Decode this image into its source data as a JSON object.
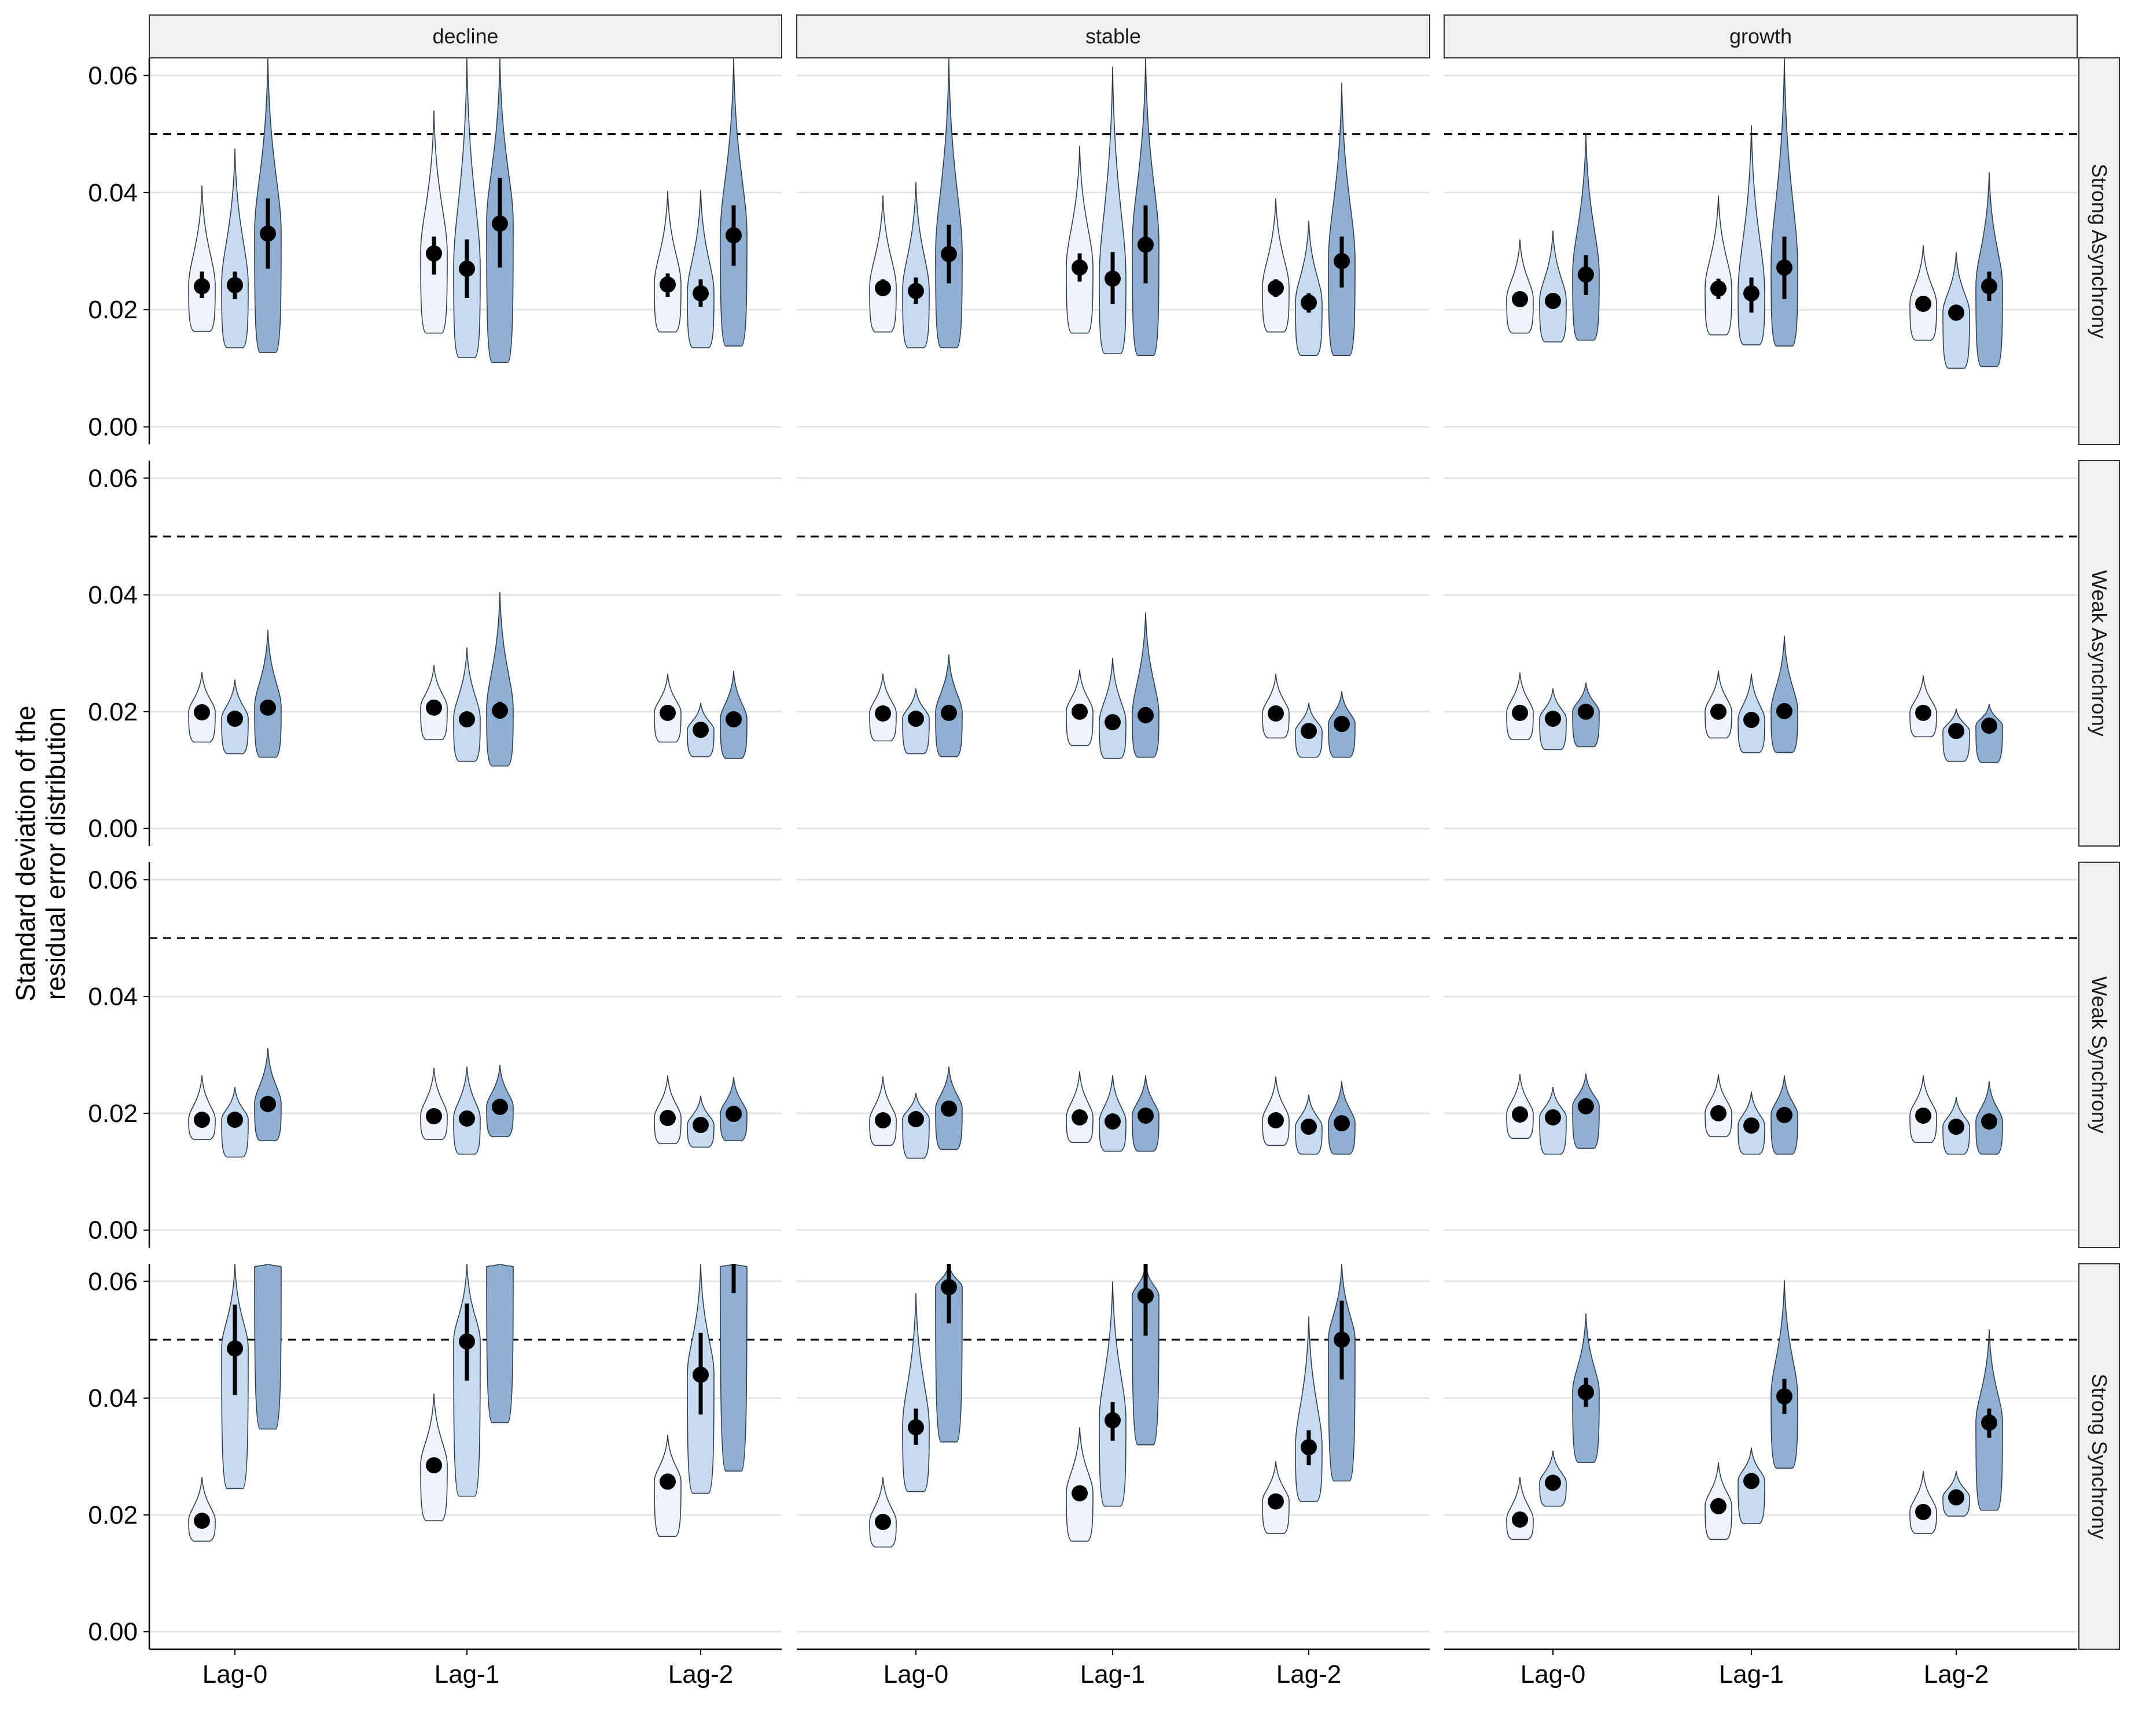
{
  "chart_data": {
    "type": "violin",
    "ylabel": "Standard deviation of the\nresidual error distribution",
    "xlabel": "",
    "title": "",
    "ylim": [
      -0.003,
      0.063
    ],
    "y_ticks": [
      0.0,
      0.02,
      0.04,
      0.06
    ],
    "y_tick_labels": [
      "0.00",
      "0.02",
      "0.04",
      "0.06"
    ],
    "reference_line": 0.05,
    "column_facets": [
      "decline",
      "stable",
      "growth"
    ],
    "row_facets": [
      "Strong Asynchrony",
      "Weak Asynchrony",
      "Weak Synchrony",
      "Strong Synchrony"
    ],
    "categories": [
      "Lag-0",
      "Lag-1",
      "Lag-2"
    ],
    "fill_colors": [
      "#eff3fa",
      "#c6dbef",
      "#8fb0d3"
    ],
    "outline_color": "#2d3e50",
    "grid": true,
    "legend": "none",
    "panels": [
      [
        [
          [
            [
              0.024,
              0.022,
              0.0265,
              0.0163,
              0.0412
            ],
            [
              0.0242,
              0.0218,
              0.0265,
              0.0135,
              0.0475
            ],
            [
              0.033,
              0.027,
              0.039,
              0.0127,
              0.063
            ]
          ],
          [
            [
              0.0296,
              0.026,
              0.0325,
              0.016,
              0.054
            ],
            [
              0.027,
              0.022,
              0.032,
              0.0118,
              0.063
            ],
            [
              0.0347,
              0.0272,
              0.0425,
              0.011,
              0.063
            ]
          ],
          [
            [
              0.0243,
              0.0222,
              0.0262,
              0.0162,
              0.0403
            ],
            [
              0.0228,
              0.0205,
              0.0252,
              0.0135,
              0.0405
            ],
            [
              0.0327,
              0.0275,
              0.0378,
              0.0138,
              0.063
            ]
          ]
        ],
        [
          [
            [
              0.0237,
              0.0223,
              0.0252,
              0.0162,
              0.0395
            ],
            [
              0.0232,
              0.021,
              0.0255,
              0.0135,
              0.0418
            ],
            [
              0.0295,
              0.0245,
              0.0345,
              0.0135,
              0.063
            ]
          ],
          [
            [
              0.0272,
              0.0248,
              0.0296,
              0.016,
              0.048
            ],
            [
              0.0253,
              0.021,
              0.0298,
              0.0125,
              0.0615
            ],
            [
              0.0311,
              0.0245,
              0.0378,
              0.0122,
              0.063
            ]
          ],
          [
            [
              0.0237,
              0.0222,
              0.0252,
              0.0162,
              0.039
            ],
            [
              0.0212,
              0.0195,
              0.0228,
              0.0122,
              0.0352
            ],
            [
              0.0283,
              0.0238,
              0.0325,
              0.0122,
              0.0588
            ]
          ]
        ],
        [
          [
            [
              0.0218,
              0.0207,
              0.0229,
              0.016,
              0.032
            ],
            [
              0.0215,
              0.0203,
              0.0228,
              0.0145,
              0.0335
            ],
            [
              0.026,
              0.0225,
              0.0293,
              0.0148,
              0.0502
            ]
          ],
          [
            [
              0.0236,
              0.0218,
              0.0253,
              0.0157,
              0.0395
            ],
            [
              0.0228,
              0.0195,
              0.0255,
              0.014,
              0.0515
            ],
            [
              0.0272,
              0.0218,
              0.0325,
              0.0138,
              0.063
            ]
          ],
          [
            [
              0.021,
              0.0203,
              0.0218,
              0.0148,
              0.031
            ],
            [
              0.0195,
              0.0185,
              0.0205,
              0.01,
              0.0298
            ],
            [
              0.024,
              0.0215,
              0.0265,
              0.0103,
              0.0435
            ]
          ]
        ]
      ],
      [
        [
          [
            [
              0.0199,
              0.0193,
              0.0205,
              0.0148,
              0.0268
            ],
            [
              0.0188,
              0.0183,
              0.0195,
              0.0128,
              0.0255
            ],
            [
              0.0207,
              0.0195,
              0.0218,
              0.0122,
              0.034
            ]
          ],
          [
            [
              0.0207,
              0.02,
              0.0213,
              0.0152,
              0.028
            ],
            [
              0.0187,
              0.0178,
              0.0195,
              0.0115,
              0.031
            ],
            [
              0.0202,
              0.0188,
              0.0217,
              0.0107,
              0.0405
            ]
          ],
          [
            [
              0.0198,
              0.0193,
              0.0203,
              0.0148,
              0.0265
            ],
            [
              0.0169,
              0.0163,
              0.0175,
              0.0123,
              0.0215
            ],
            [
              0.0187,
              0.0177,
              0.0197,
              0.012,
              0.027
            ]
          ]
        ],
        [
          [
            [
              0.0197,
              0.0192,
              0.0202,
              0.015,
              0.0265
            ],
            [
              0.0188,
              0.0182,
              0.0195,
              0.0128,
              0.024
            ],
            [
              0.0198,
              0.0188,
              0.0208,
              0.0123,
              0.0298
            ]
          ],
          [
            [
              0.02,
              0.0193,
              0.0207,
              0.0142,
              0.0272
            ],
            [
              0.0182,
              0.0175,
              0.019,
              0.012,
              0.0292
            ],
            [
              0.0194,
              0.018,
              0.0208,
              0.0122,
              0.037
            ]
          ],
          [
            [
              0.0197,
              0.0192,
              0.0202,
              0.0155,
              0.0265
            ],
            [
              0.0167,
              0.0162,
              0.0173,
              0.0122,
              0.0215
            ],
            [
              0.0179,
              0.0172,
              0.0187,
              0.0122,
              0.0235
            ]
          ]
        ],
        [
          [
            [
              0.0198,
              0.0193,
              0.0203,
              0.0152,
              0.0267
            ],
            [
              0.0188,
              0.0183,
              0.0195,
              0.0135,
              0.024
            ],
            [
              0.02,
              0.0192,
              0.0208,
              0.014,
              0.025
            ]
          ],
          [
            [
              0.02,
              0.0194,
              0.0206,
              0.0155,
              0.027
            ],
            [
              0.0186,
              0.0178,
              0.0194,
              0.013,
              0.0265
            ],
            [
              0.0201,
              0.019,
              0.0212,
              0.013,
              0.033
            ]
          ],
          [
            [
              0.0198,
              0.0193,
              0.0203,
              0.0157,
              0.0262
            ],
            [
              0.0167,
              0.0162,
              0.0172,
              0.0115,
              0.0205
            ],
            [
              0.0176,
              0.0169,
              0.0183,
              0.0113,
              0.0213
            ]
          ]
        ]
      ],
      [
        [
          [
            [
              0.0189,
              0.0184,
              0.0195,
              0.0155,
              0.0265
            ],
            [
              0.0189,
              0.0183,
              0.0195,
              0.0125,
              0.0245
            ],
            [
              0.0216,
              0.0207,
              0.0225,
              0.0153,
              0.0312
            ]
          ],
          [
            [
              0.0195,
              0.019,
              0.02,
              0.0155,
              0.0278
            ],
            [
              0.0191,
              0.0184,
              0.0198,
              0.013,
              0.028
            ],
            [
              0.0211,
              0.0203,
              0.0219,
              0.016,
              0.0283
            ]
          ],
          [
            [
              0.0192,
              0.0187,
              0.0197,
              0.0148,
              0.0265
            ],
            [
              0.018,
              0.0175,
              0.0185,
              0.0142,
              0.023
            ],
            [
              0.0199,
              0.0193,
              0.0205,
              0.0153,
              0.0262
            ]
          ]
        ],
        [
          [
            [
              0.0188,
              0.0183,
              0.0193,
              0.0145,
              0.0263
            ],
            [
              0.019,
              0.0183,
              0.0197,
              0.0123,
              0.0235
            ],
            [
              0.0208,
              0.0198,
              0.0218,
              0.0138,
              0.028
            ]
          ],
          [
            [
              0.0193,
              0.0188,
              0.0198,
              0.015,
              0.0272
            ],
            [
              0.0186,
              0.0179,
              0.0193,
              0.0135,
              0.0265
            ],
            [
              0.0196,
              0.0188,
              0.0204,
              0.0135,
              0.0265
            ]
          ],
          [
            [
              0.0188,
              0.0183,
              0.0193,
              0.0145,
              0.0263
            ],
            [
              0.0177,
              0.0172,
              0.0183,
              0.013,
              0.0232
            ],
            [
              0.0183,
              0.0176,
              0.019,
              0.013,
              0.0255
            ]
          ]
        ],
        [
          [
            [
              0.0198,
              0.0193,
              0.0203,
              0.0157,
              0.0267
            ],
            [
              0.0193,
              0.0187,
              0.0199,
              0.013,
              0.0245
            ],
            [
              0.0212,
              0.0203,
              0.0221,
              0.014,
              0.0268
            ]
          ],
          [
            [
              0.02,
              0.0194,
              0.0206,
              0.016,
              0.0267
            ],
            [
              0.0179,
              0.0173,
              0.0185,
              0.013,
              0.0237
            ],
            [
              0.0197,
              0.0189,
              0.0205,
              0.013,
              0.0265
            ]
          ],
          [
            [
              0.0196,
              0.0191,
              0.0201,
              0.015,
              0.0265
            ],
            [
              0.0177,
              0.0172,
              0.0183,
              0.013,
              0.0228
            ],
            [
              0.0186,
              0.0179,
              0.0193,
              0.013,
              0.0255
            ]
          ]
        ]
      ],
      [
        [
          [
            [
              0.019,
              0.0186,
              0.0195,
              0.0155,
              0.0265
            ],
            [
              0.0485,
              0.0405,
              0.056,
              0.0245,
              0.063
            ],
            [
              0.065,
              0.063,
              0.063,
              0.0347,
              0.063
            ]
          ],
          [
            [
              0.0285,
              0.0273,
              0.0297,
              0.019,
              0.0408
            ],
            [
              0.0497,
              0.043,
              0.0562,
              0.0232,
              0.063
            ],
            [
              0.065,
              0.063,
              0.063,
              0.0358,
              0.063
            ]
          ],
          [
            [
              0.0257,
              0.0245,
              0.027,
              0.0163,
              0.0337
            ],
            [
              0.044,
              0.0372,
              0.0512,
              0.0237,
              0.063
            ],
            [
              0.065,
              0.058,
              0.063,
              0.0275,
              0.063
            ]
          ]
        ],
        [
          [
            [
              0.0188,
              0.0183,
              0.0193,
              0.0145,
              0.0265
            ],
            [
              0.035,
              0.032,
              0.0382,
              0.024,
              0.058
            ],
            [
              0.059,
              0.0528,
              0.063,
              0.0325,
              0.063
            ]
          ],
          [
            [
              0.0237,
              0.0225,
              0.0248,
              0.0155,
              0.035
            ],
            [
              0.0362,
              0.0327,
              0.0393,
              0.0215,
              0.06
            ],
            [
              0.0575,
              0.0507,
              0.063,
              0.032,
              0.063
            ]
          ],
          [
            [
              0.0223,
              0.0218,
              0.0228,
              0.0168,
              0.0292
            ],
            [
              0.0316,
              0.0285,
              0.0345,
              0.0223,
              0.054
            ],
            [
              0.05,
              0.0432,
              0.0567,
              0.0258,
              0.063
            ]
          ]
        ],
        [
          [
            [
              0.0192,
              0.0187,
              0.0197,
              0.0158,
              0.0265
            ],
            [
              0.0255,
              0.0245,
              0.0265,
              0.0215,
              0.031
            ],
            [
              0.041,
              0.0385,
              0.0435,
              0.029,
              0.0545
            ]
          ],
          [
            [
              0.0215,
              0.0208,
              0.0222,
              0.0158,
              0.029
            ],
            [
              0.0258,
              0.0245,
              0.0272,
              0.0185,
              0.0315
            ],
            [
              0.0403,
              0.0373,
              0.0433,
              0.028,
              0.0602
            ]
          ],
          [
            [
              0.0205,
              0.0199,
              0.0211,
              0.0168,
              0.0275
            ],
            [
              0.023,
              0.0223,
              0.0238,
              0.0198,
              0.0275
            ],
            [
              0.0358,
              0.0332,
              0.0382,
              0.0208,
              0.0518
            ]
          ]
        ]
      ]
    ]
  }
}
